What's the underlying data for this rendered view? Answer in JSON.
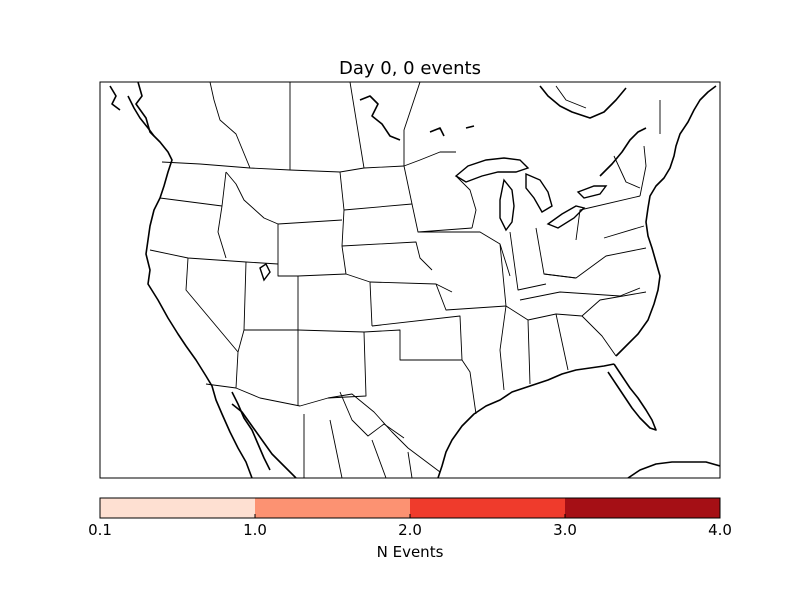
{
  "title": "Day 0, 0 events",
  "colorbar": {
    "label": "N Events",
    "ticks": [
      "0.1",
      "1.0",
      "2.0",
      "3.0",
      "4.0"
    ],
    "colors": [
      "#fee0d2",
      "#fc9272",
      "#ef3b2c",
      "#a50f15"
    ]
  },
  "map": {
    "region": "North America (contiguous United States)",
    "projection": "Lambert Conformal",
    "events": []
  }
}
